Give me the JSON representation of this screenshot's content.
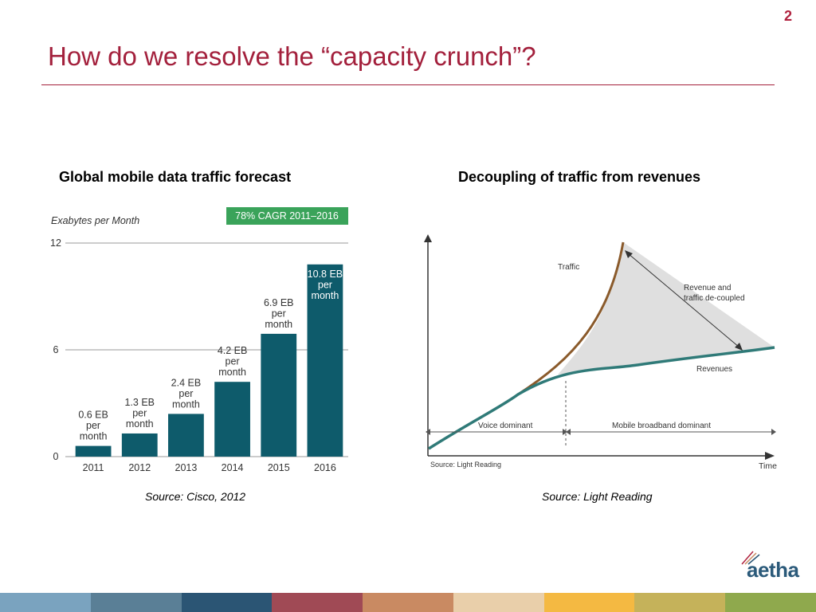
{
  "page_number": "2",
  "title": "How do we resolve the “capacity crunch”?",
  "left_chart": {
    "heading": "Global mobile data traffic forecast",
    "source": "Source: Cisco, 2012"
  },
  "right_chart": {
    "heading": "Decoupling of traffic from revenues",
    "source": "Source: Light Reading"
  },
  "chart_data": [
    {
      "type": "bar",
      "ylabel": "Exabytes per Month",
      "badge": "78% CAGR 2011–2016",
      "categories": [
        "2011",
        "2012",
        "2013",
        "2014",
        "2015",
        "2016"
      ],
      "values": [
        0.6,
        1.3,
        2.4,
        4.2,
        6.9,
        10.8
      ],
      "data_labels": [
        [
          "0.6 EB",
          "per",
          "month"
        ],
        [
          "1.3 EB",
          "per",
          "month"
        ],
        [
          "2.4 EB",
          "per",
          "month"
        ],
        [
          "4.2 EB",
          "per",
          "month"
        ],
        [
          "6.9 EB",
          "per",
          "month"
        ],
        [
          "10.8 EB",
          "per",
          "month"
        ]
      ],
      "yticks": [
        "0",
        "6",
        "12"
      ],
      "ylim": [
        0,
        12
      ],
      "grid": true,
      "colors": {
        "bar": "#0e5b6b",
        "badge": "#3aa35a",
        "axis": "#666666"
      }
    },
    {
      "type": "line",
      "xlabel": "Time",
      "series": [
        {
          "name": "Traffic",
          "color": "#8a5a2b"
        },
        {
          "name": "Revenues",
          "color": "#2f7a78"
        }
      ],
      "annotations": [
        "Revenue and",
        "traffic de-coupled",
        "Voice dominant",
        "Mobile broadband dominant",
        "Source: Light Reading"
      ]
    }
  ],
  "logo": {
    "text": "aetha"
  },
  "footer_colors": [
    "#7aa3bf",
    "#5a7f96",
    "#2b5574",
    "#a04a55",
    "#c98a62",
    "#e9cfaa",
    "#f4b942",
    "#c5b25a",
    "#8fa94d"
  ]
}
